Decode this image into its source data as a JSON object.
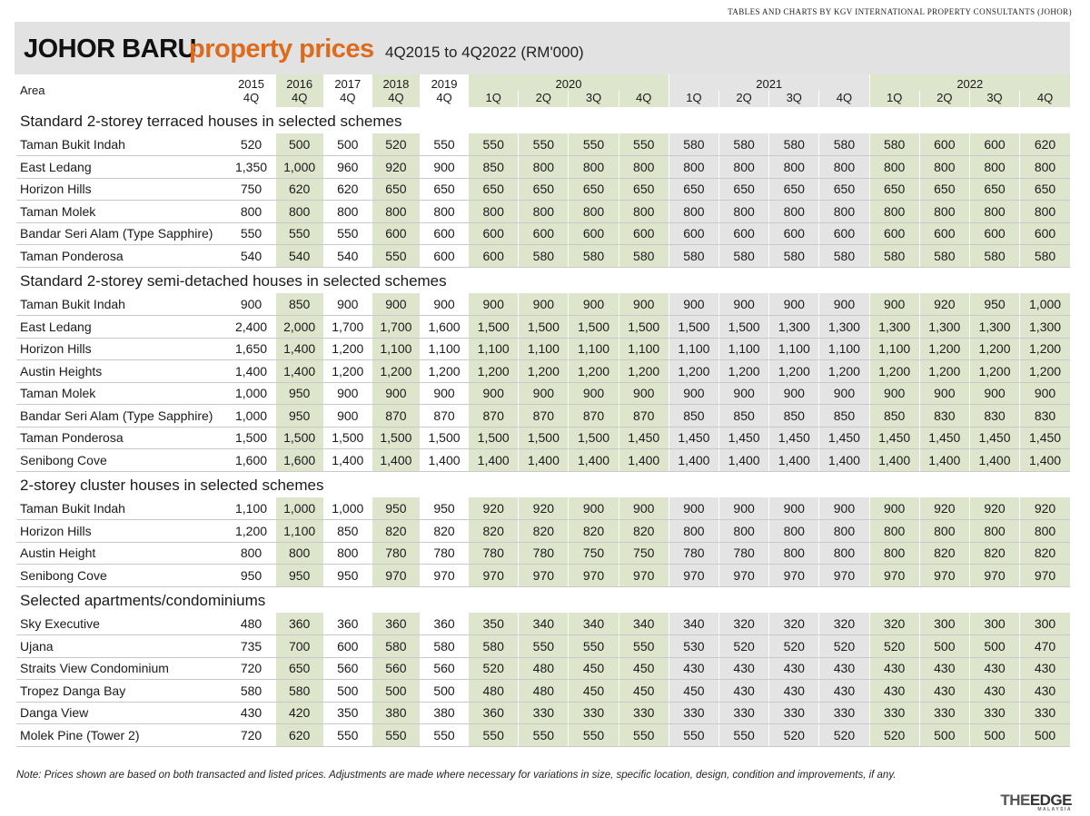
{
  "source": "TABLES AND CHARTS BY KGV INTERNATIONAL PROPERTY CONSULTANTS (JOHOR)",
  "title": {
    "part1": "JOHOR BARU",
    "part2": "property prices",
    "part3": "4Q2015 to 4Q2022 (RM'000)"
  },
  "header": {
    "area_label": "Area",
    "years": [
      "2015",
      "2016",
      "2017",
      "2018",
      "2019",
      "2020",
      "2021",
      "2022"
    ],
    "quarters": [
      "4Q",
      "4Q",
      "4Q",
      "4Q",
      "4Q",
      "1Q",
      "2Q",
      "3Q",
      "4Q",
      "1Q",
      "2Q",
      "3Q",
      "4Q",
      "1Q",
      "2Q",
      "3Q",
      "4Q"
    ]
  },
  "sections": [
    {
      "title": "Standard 2-storey terraced houses in selected schemes",
      "rows": [
        {
          "area": "Taman Bukit Indah",
          "values": [
            "520",
            "500",
            "500",
            "520",
            "550",
            "550",
            "550",
            "550",
            "550",
            "580",
            "580",
            "580",
            "580",
            "580",
            "600",
            "600",
            "620"
          ]
        },
        {
          "area": "East Ledang",
          "values": [
            "1,350",
            "1,000",
            "960",
            "920",
            "900",
            "850",
            "800",
            "800",
            "800",
            "800",
            "800",
            "800",
            "800",
            "800",
            "800",
            "800",
            "800"
          ]
        },
        {
          "area": "Horizon Hills",
          "values": [
            "750",
            "620",
            "620",
            "650",
            "650",
            "650",
            "650",
            "650",
            "650",
            "650",
            "650",
            "650",
            "650",
            "650",
            "650",
            "650",
            "650"
          ]
        },
        {
          "area": "Taman Molek",
          "values": [
            "800",
            "800",
            "800",
            "800",
            "800",
            "800",
            "800",
            "800",
            "800",
            "800",
            "800",
            "800",
            "800",
            "800",
            "800",
            "800",
            "800"
          ]
        },
        {
          "area": "Bandar Seri Alam (Type Sapphire)",
          "values": [
            "550",
            "550",
            "550",
            "600",
            "600",
            "600",
            "600",
            "600",
            "600",
            "600",
            "600",
            "600",
            "600",
            "600",
            "600",
            "600",
            "600"
          ]
        },
        {
          "area": "Taman Ponderosa",
          "values": [
            "540",
            "540",
            "540",
            "550",
            "600",
            "600",
            "580",
            "580",
            "580",
            "580",
            "580",
            "580",
            "580",
            "580",
            "580",
            "580",
            "580"
          ]
        }
      ]
    },
    {
      "title": "Standard 2-storey semi-detached houses in selected schemes",
      "rows": [
        {
          "area": "Taman Bukit Indah",
          "values": [
            "900",
            "850",
            "900",
            "900",
            "900",
            "900",
            "900",
            "900",
            "900",
            "900",
            "900",
            "900",
            "900",
            "900",
            "920",
            "950",
            "1,000"
          ]
        },
        {
          "area": "East Ledang",
          "values": [
            "2,400",
            "2,000",
            "1,700",
            "1,700",
            "1,600",
            "1,500",
            "1,500",
            "1,500",
            "1,500",
            "1,500",
            "1,500",
            "1,300",
            "1,300",
            "1,300",
            "1,300",
            "1,300",
            "1,300"
          ]
        },
        {
          "area": "Horizon Hills",
          "values": [
            "1,650",
            "1,400",
            "1,200",
            "1,100",
            "1,100",
            "1,100",
            "1,100",
            "1,100",
            "1,100",
            "1,100",
            "1,100",
            "1,100",
            "1,100",
            "1,100",
            "1,200",
            "1,200",
            "1,200"
          ]
        },
        {
          "area": "Austin Heights",
          "values": [
            "1,400",
            "1,400",
            "1,200",
            "1,200",
            "1,200",
            "1,200",
            "1,200",
            "1,200",
            "1,200",
            "1,200",
            "1,200",
            "1,200",
            "1,200",
            "1,200",
            "1,200",
            "1,200",
            "1,200"
          ]
        },
        {
          "area": "Taman Molek",
          "values": [
            "1,000",
            "950",
            "900",
            "900",
            "900",
            "900",
            "900",
            "900",
            "900",
            "900",
            "900",
            "900",
            "900",
            "900",
            "900",
            "900",
            "900"
          ]
        },
        {
          "area": "Bandar Seri Alam (Type Sapphire)",
          "values": [
            "1,000",
            "950",
            "900",
            "870",
            "870",
            "870",
            "870",
            "870",
            "870",
            "850",
            "850",
            "850",
            "850",
            "850",
            "830",
            "830",
            "830"
          ]
        },
        {
          "area": "Taman Ponderosa",
          "values": [
            "1,500",
            "1,500",
            "1,500",
            "1,500",
            "1,500",
            "1,500",
            "1,500",
            "1,500",
            "1,450",
            "1,450",
            "1,450",
            "1,450",
            "1,450",
            "1,450",
            "1,450",
            "1,450",
            "1,450"
          ]
        },
        {
          "area": "Senibong Cove",
          "values": [
            "1,600",
            "1,600",
            "1,400",
            "1,400",
            "1,400",
            "1,400",
            "1,400",
            "1,400",
            "1,400",
            "1,400",
            "1,400",
            "1,400",
            "1,400",
            "1,400",
            "1,400",
            "1,400",
            "1,400"
          ]
        }
      ]
    },
    {
      "title": "2-storey cluster houses in selected schemes",
      "rows": [
        {
          "area": "Taman Bukit Indah",
          "values": [
            "1,100",
            "1,000",
            "1,000",
            "950",
            "950",
            "920",
            "920",
            "900",
            "900",
            "900",
            "900",
            "900",
            "900",
            "900",
            "920",
            "920",
            "920"
          ]
        },
        {
          "area": "Horizon Hills",
          "values": [
            "1,200",
            "1,100",
            "850",
            "820",
            "820",
            "820",
            "820",
            "820",
            "820",
            "800",
            "800",
            "800",
            "800",
            "800",
            "800",
            "800",
            "800"
          ]
        },
        {
          "area": "Austin Height",
          "values": [
            "800",
            "800",
            "800",
            "780",
            "780",
            "780",
            "780",
            "750",
            "750",
            "780",
            "780",
            "800",
            "800",
            "800",
            "820",
            "820",
            "820"
          ]
        },
        {
          "area": "Senibong Cove",
          "values": [
            "950",
            "950",
            "950",
            "970",
            "970",
            "970",
            "970",
            "970",
            "970",
            "970",
            "970",
            "970",
            "970",
            "970",
            "970",
            "970",
            "970"
          ]
        }
      ]
    },
    {
      "title": "Selected apartments/condominiums",
      "rows": [
        {
          "area": "Sky Executive",
          "values": [
            "480",
            "360",
            "360",
            "360",
            "360",
            "350",
            "340",
            "340",
            "340",
            "340",
            "320",
            "320",
            "320",
            "320",
            "300",
            "300",
            "300"
          ]
        },
        {
          "area": "Ujana",
          "values": [
            "735",
            "700",
            "600",
            "580",
            "580",
            "580",
            "550",
            "550",
            "550",
            "530",
            "520",
            "520",
            "520",
            "520",
            "500",
            "500",
            "470"
          ]
        },
        {
          "area": "Straits View Condominium",
          "values": [
            "720",
            "650",
            "560",
            "560",
            "560",
            "520",
            "480",
            "450",
            "450",
            "430",
            "430",
            "430",
            "430",
            "430",
            "430",
            "430",
            "430"
          ]
        },
        {
          "area": "Tropez Danga Bay",
          "values": [
            "580",
            "580",
            "500",
            "500",
            "500",
            "480",
            "480",
            "450",
            "450",
            "450",
            "430",
            "430",
            "430",
            "430",
            "430",
            "430",
            "430"
          ]
        },
        {
          "area": "Danga View",
          "values": [
            "430",
            "420",
            "350",
            "380",
            "380",
            "360",
            "330",
            "330",
            "330",
            "330",
            "330",
            "330",
            "330",
            "330",
            "330",
            "330",
            "330"
          ]
        },
        {
          "area": "Molek Pine (Tower 2)",
          "values": [
            "720",
            "620",
            "550",
            "550",
            "550",
            "550",
            "550",
            "550",
            "550",
            "550",
            "550",
            "520",
            "520",
            "520",
            "500",
            "500",
            "500"
          ]
        }
      ]
    }
  ],
  "note": "Note: Prices shown are based on both transacted and listed prices. Adjustments are made where necessary for variations in size, specific location, design, condition and improvements, if any.",
  "logo": {
    "part1": "THE",
    "part2": "EDGE",
    "sub": "MALAYSIA"
  }
}
